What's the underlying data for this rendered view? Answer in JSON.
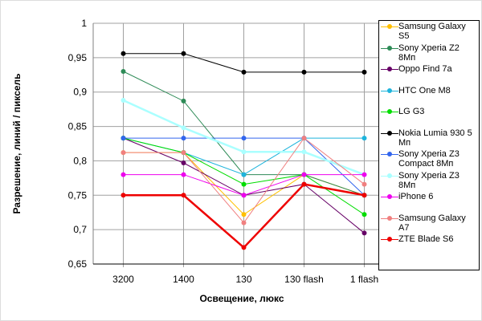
{
  "chart_data": {
    "type": "line",
    "title": "",
    "xlabel": "Освещение, люкс",
    "ylabel": "Разрешение, линий / пиксель",
    "ylim": [
      0.65,
      1
    ],
    "yticks": [
      "0,65",
      "0,7",
      "0,75",
      "0,8",
      "0,85",
      "0,9",
      "0,95",
      "1"
    ],
    "categories": [
      "3200",
      "1400",
      "130",
      "130 flash",
      "1 flash"
    ],
    "grid": true,
    "legend": "right",
    "series": [
      {
        "name": "Samsung Galaxy S5",
        "color": "#ffc000",
        "values": [
          0.812,
          0.812,
          0.722,
          0.78,
          0.75
        ]
      },
      {
        "name": "Sony Xperia Z2 8Мп",
        "color": "#2e8b57",
        "values": [
          0.93,
          0.887,
          0.78,
          0.78,
          0.75
        ]
      },
      {
        "name": "Oppo Find 7a",
        "color": "#660066",
        "values": [
          0.833,
          0.797,
          0.75,
          0.766,
          0.695
        ]
      },
      {
        "name": "HTC One M8",
        "color": "#1eb4dc",
        "values": [
          0.833,
          0.812,
          0.78,
          0.833,
          0.833
        ]
      },
      {
        "name": "LG G3",
        "color": "#00dd00",
        "values": [
          0.833,
          0.812,
          0.766,
          0.78,
          0.722
        ]
      },
      {
        "name": "Nokia Lumia 930 5 Мп",
        "color": "#000000",
        "values": [
          0.956,
          0.956,
          0.929,
          0.929,
          0.929
        ]
      },
      {
        "name": "Sony Xperia Z3 Compact 8Мп",
        "color": "#3366ee",
        "values": [
          0.833,
          0.833,
          0.833,
          0.833,
          0.75
        ]
      },
      {
        "name": "Sony Xperia Z3 8Мп",
        "color": "#aaffff",
        "values": [
          0.888,
          0.848,
          0.813,
          0.813,
          0.78
        ]
      },
      {
        "name": "iPhone 6",
        "color": "#ee00ee",
        "values": [
          0.78,
          0.78,
          0.75,
          0.78,
          0.78
        ]
      },
      {
        "name": "Samsung Galaxy A7",
        "color": "#f08080",
        "values": [
          0.812,
          0.812,
          0.71,
          0.833,
          0.766
        ]
      },
      {
        "name": "ZTE Blade S6",
        "color": "#ee0000",
        "values": [
          0.75,
          0.75,
          0.674,
          0.766,
          0.75
        ]
      }
    ]
  }
}
